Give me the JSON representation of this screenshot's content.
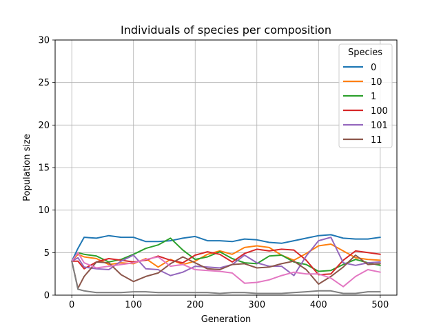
{
  "chart_data": {
    "type": "line",
    "title": "Individuals of species per composition",
    "xlabel": "Generation",
    "ylabel": "Population size",
    "xlim": [
      -27,
      527
    ],
    "ylim": [
      0,
      30
    ],
    "xticks": [
      0,
      100,
      200,
      300,
      400,
      500
    ],
    "yticks": [
      0,
      5,
      10,
      15,
      20,
      25,
      30
    ],
    "grid": true,
    "legend": {
      "title": "Species",
      "placement": "top-right"
    },
    "series": [
      {
        "name": "0",
        "color": "#1f77b4",
        "visible_in_legend": true,
        "x": [
          0,
          10,
          20,
          40,
          60,
          80,
          100,
          120,
          140,
          160,
          180,
          200,
          220,
          240,
          260,
          280,
          300,
          320,
          340,
          360,
          380,
          400,
          420,
          440,
          460,
          480,
          500
        ],
        "y": [
          4.0,
          5.5,
          6.8,
          6.7,
          7.0,
          6.8,
          6.8,
          6.3,
          6.3,
          6.4,
          6.7,
          6.9,
          6.4,
          6.4,
          6.3,
          6.6,
          6.5,
          6.2,
          6.1,
          6.4,
          6.7,
          7.0,
          7.1,
          6.7,
          6.6,
          6.6,
          6.8
        ]
      },
      {
        "name": "10",
        "color": "#ff7f0e",
        "visible_in_legend": true,
        "x": [
          0,
          10,
          20,
          40,
          60,
          80,
          100,
          120,
          140,
          160,
          180,
          200,
          220,
          240,
          260,
          280,
          300,
          320,
          340,
          360,
          380,
          400,
          420,
          440,
          460,
          480,
          500
        ],
        "y": [
          4.0,
          4.8,
          4.5,
          4.3,
          3.6,
          3.8,
          3.7,
          4.3,
          3.3,
          4.2,
          3.6,
          4.0,
          4.8,
          5.2,
          4.8,
          5.6,
          5.8,
          5.6,
          4.7,
          4.1,
          4.9,
          5.8,
          6.0,
          5.2,
          4.4,
          4.2,
          4.1
        ]
      },
      {
        "name": "1",
        "color": "#2ca02c",
        "visible_in_legend": true,
        "x": [
          0,
          10,
          20,
          40,
          60,
          80,
          100,
          120,
          140,
          160,
          180,
          200,
          220,
          240,
          260,
          280,
          300,
          320,
          340,
          360,
          380,
          400,
          420,
          440,
          460,
          480,
          500
        ],
        "y": [
          4.0,
          5.0,
          4.8,
          4.6,
          3.9,
          4.2,
          4.8,
          5.5,
          5.9,
          6.7,
          5.3,
          4.2,
          4.5,
          5.1,
          4.3,
          3.8,
          3.7,
          4.6,
          4.7,
          3.9,
          3.6,
          2.8,
          2.9,
          3.6,
          4.2,
          3.8,
          3.5
        ]
      },
      {
        "name": "100",
        "color": "#d62728",
        "visible_in_legend": true,
        "x": [
          0,
          10,
          20,
          40,
          60,
          80,
          100,
          120,
          140,
          160,
          180,
          200,
          220,
          240,
          260,
          280,
          300,
          320,
          340,
          360,
          380,
          400,
          420,
          440,
          460,
          480,
          500
        ],
        "y": [
          4.0,
          4.0,
          3.1,
          3.9,
          4.3,
          4.1,
          3.9,
          4.1,
          4.6,
          4.1,
          3.8,
          4.7,
          5.1,
          4.8,
          3.9,
          4.9,
          5.4,
          5.2,
          5.4,
          5.3,
          4.1,
          2.4,
          2.5,
          4.1,
          5.2,
          5.0,
          4.8
        ]
      },
      {
        "name": "101",
        "color": "#9467bd",
        "visible_in_legend": true,
        "x": [
          0,
          10,
          20,
          40,
          60,
          80,
          100,
          120,
          140,
          160,
          180,
          200,
          220,
          240,
          260,
          280,
          300,
          320,
          340,
          360,
          380,
          400,
          420,
          440,
          460,
          480,
          500
        ],
        "y": [
          4.0,
          4.4,
          3.3,
          3.1,
          3.0,
          4.0,
          4.7,
          3.1,
          3.0,
          2.3,
          2.7,
          3.4,
          3.3,
          3.2,
          3.6,
          4.7,
          3.8,
          3.4,
          3.4,
          2.3,
          4.6,
          6.4,
          6.8,
          3.8,
          3.5,
          3.8,
          3.9
        ]
      },
      {
        "name": "11",
        "color": "#8c564b",
        "visible_in_legend": true,
        "x": [
          0,
          10,
          20,
          40,
          60,
          80,
          100,
          120,
          140,
          160,
          180,
          200,
          220,
          240,
          260,
          280,
          300,
          320,
          340,
          360,
          380,
          400,
          420,
          440,
          460,
          480,
          500
        ],
        "y": [
          4.0,
          0.8,
          2.2,
          3.9,
          3.8,
          2.4,
          1.6,
          2.2,
          2.6,
          3.7,
          4.5,
          3.8,
          3.1,
          3.0,
          3.6,
          3.7,
          3.2,
          3.3,
          3.7,
          4.0,
          3.0,
          1.3,
          2.2,
          3.3,
          4.7,
          3.6,
          3.7
        ]
      },
      {
        "name": "",
        "color": "#e377c2",
        "visible_in_legend": false,
        "x": [
          0,
          10,
          20,
          40,
          60,
          80,
          100,
          120,
          140,
          160,
          180,
          200,
          220,
          240,
          260,
          280,
          300,
          320,
          340,
          360,
          380,
          400,
          420,
          440,
          460,
          480,
          500
        ],
        "y": [
          4.0,
          5.0,
          3.8,
          3.2,
          3.4,
          3.6,
          3.8,
          4.2,
          4.5,
          3.4,
          3.6,
          3.0,
          2.9,
          2.8,
          2.6,
          1.4,
          1.5,
          1.8,
          2.3,
          2.7,
          2.5,
          2.5,
          2.0,
          1.0,
          2.2,
          3.0,
          2.7
        ]
      },
      {
        "name": "",
        "color": "#7f7f7f",
        "visible_in_legend": false,
        "x": [
          0,
          10,
          20,
          40,
          60,
          80,
          100,
          120,
          140,
          160,
          180,
          200,
          220,
          240,
          260,
          280,
          300,
          320,
          340,
          360,
          380,
          400,
          420,
          440,
          460,
          480,
          500
        ],
        "y": [
          4.0,
          0.7,
          0.5,
          0.3,
          0.3,
          0.3,
          0.4,
          0.4,
          0.3,
          0.3,
          0.3,
          0.3,
          0.3,
          0.2,
          0.3,
          0.3,
          0.2,
          0.2,
          0.2,
          0.3,
          0.4,
          0.5,
          0.5,
          0.2,
          0.2,
          0.4,
          0.4
        ]
      }
    ]
  }
}
